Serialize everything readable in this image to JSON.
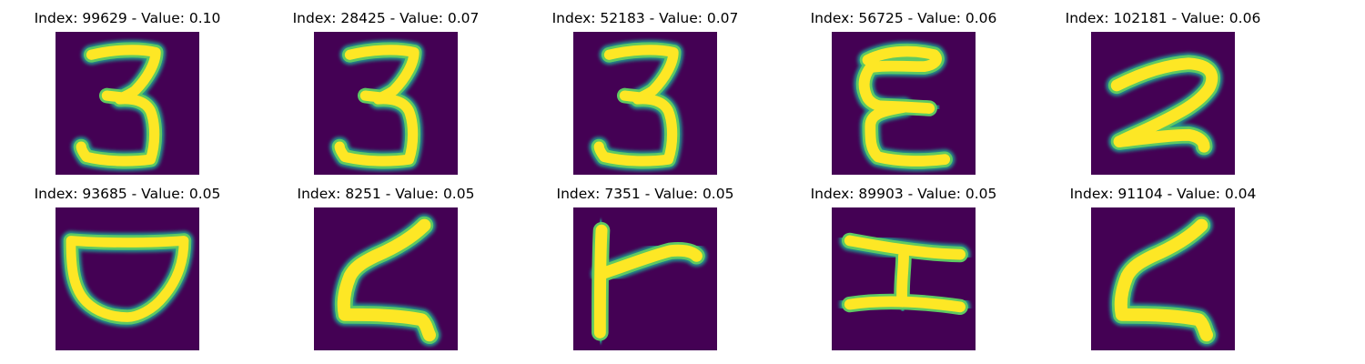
{
  "figure": {
    "background_color": "#440154",
    "colormap": "viridis",
    "panels": [
      {
        "title": "Index: 99629 - Value: 0.10",
        "index": 99629,
        "value": 0.1,
        "glyph": "3"
      },
      {
        "title": "Index: 28425 - Value: 0.07",
        "index": 28425,
        "value": 0.07,
        "glyph": "3"
      },
      {
        "title": "Index: 52183 - Value: 0.07",
        "index": 52183,
        "value": 0.07,
        "glyph": "3"
      },
      {
        "title": "Index: 56725 - Value: 0.06",
        "index": 56725,
        "value": 0.06,
        "glyph": "epsilon-like"
      },
      {
        "title": "Index: 102181 - Value: 0.06",
        "index": 102181,
        "value": 0.06,
        "glyph": "2-like"
      },
      {
        "title": "Index: 93685 - Value: 0.05",
        "index": 93685,
        "value": 0.05,
        "glyph": "bowl"
      },
      {
        "title": "Index: 8251 - Value: 0.05",
        "index": 8251,
        "value": 0.05,
        "glyph": "Z-like"
      },
      {
        "title": "Index: 7351 - Value: 0.05",
        "index": 7351,
        "value": 0.05,
        "glyph": "F-like"
      },
      {
        "title": "Index: 89903 - Value: 0.05",
        "index": 89903,
        "value": 0.05,
        "glyph": "I-like"
      },
      {
        "title": "Index: 91104 - Value: 0.04",
        "index": 91104,
        "value": 0.04,
        "glyph": "Z-like"
      }
    ]
  }
}
